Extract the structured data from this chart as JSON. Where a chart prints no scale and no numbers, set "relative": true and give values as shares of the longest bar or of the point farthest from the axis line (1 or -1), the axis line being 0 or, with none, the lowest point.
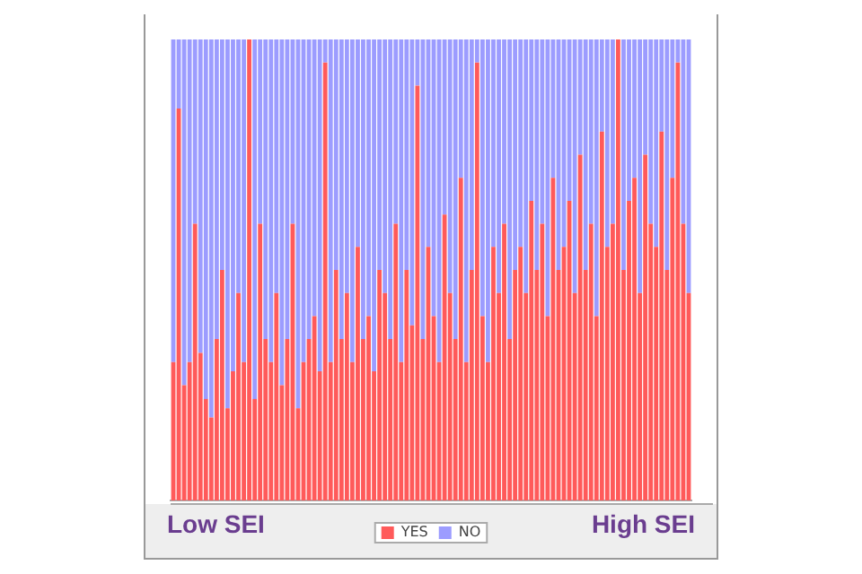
{
  "chart_data": {
    "type": "bar",
    "stacked": true,
    "relative": true,
    "legend": "bottom",
    "annotations": [
      "Low SEI",
      "High SEI"
    ],
    "categories": [
      null,
      null,
      null,
      null,
      null,
      null,
      null,
      null,
      null,
      null,
      null,
      null,
      null,
      null,
      null,
      null,
      null,
      null,
      null,
      null,
      null,
      null,
      null,
      null,
      null,
      null,
      null,
      null,
      null,
      null,
      null,
      null,
      null,
      null,
      null,
      null,
      null,
      null,
      null,
      null,
      null,
      null,
      null,
      null,
      null,
      null,
      null,
      null,
      null,
      null,
      null,
      null,
      null,
      null,
      null,
      null,
      null,
      null,
      null,
      null,
      null,
      null,
      null,
      null,
      null,
      null,
      null,
      null,
      null,
      null,
      null,
      null,
      null,
      null,
      null,
      null,
      null,
      null,
      null,
      null,
      null,
      null,
      null,
      null,
      null,
      null,
      null,
      null,
      null,
      null,
      null,
      null,
      null,
      null,
      null,
      null
    ],
    "series": [
      {
        "name": "YES",
        "color": "#ff5a5a",
        "values": [
          0.3,
          0.85,
          0.25,
          0.3,
          0.6,
          0.32,
          0.22,
          0.18,
          0.35,
          0.5,
          0.2,
          0.28,
          0.45,
          0.3,
          1.0,
          0.22,
          0.6,
          0.35,
          0.3,
          0.45,
          0.25,
          0.35,
          0.6,
          0.2,
          0.3,
          0.35,
          0.4,
          0.28,
          0.95,
          0.3,
          0.5,
          0.35,
          0.45,
          0.3,
          0.55,
          0.35,
          0.4,
          0.28,
          0.5,
          0.45,
          0.35,
          0.6,
          0.3,
          0.5,
          0.38,
          0.9,
          0.35,
          0.55,
          0.4,
          0.3,
          0.62,
          0.45,
          0.35,
          0.7,
          0.3,
          0.5,
          0.95,
          0.4,
          0.3,
          0.55,
          0.45,
          0.6,
          0.35,
          0.5,
          0.55,
          0.45,
          0.65,
          0.5,
          0.6,
          0.4,
          0.7,
          0.5,
          0.55,
          0.65,
          0.45,
          0.75,
          0.5,
          0.6,
          0.4,
          0.8,
          0.55,
          0.6,
          1.0,
          0.5,
          0.65,
          0.7,
          0.45,
          0.75,
          0.6,
          0.55,
          0.8,
          0.5,
          0.7,
          0.95,
          0.6,
          0.45
        ]
      },
      {
        "name": "NO",
        "color": "#9c9cff",
        "values": [
          0.7,
          0.15,
          0.75,
          0.7,
          0.4,
          0.68,
          0.78,
          0.82,
          0.65,
          0.5,
          0.8,
          0.72,
          0.55,
          0.7,
          0,
          0.78,
          0.4,
          0.65,
          0.7,
          0.55,
          0.75,
          0.65,
          0.4,
          0.8,
          0.7,
          0.65,
          0.6,
          0.72,
          0.05,
          0.7,
          0.5,
          0.65,
          0.55,
          0.7,
          0.45,
          0.65,
          0.6,
          0.72,
          0.5,
          0.55,
          0.65,
          0.4,
          0.7,
          0.5,
          0.62,
          0.1,
          0.65,
          0.45,
          0.6,
          0.7,
          0.38,
          0.55,
          0.65,
          0.3,
          0.7,
          0.5,
          0.05,
          0.6,
          0.7,
          0.45,
          0.55,
          0.4,
          0.65,
          0.5,
          0.45,
          0.55,
          0.35,
          0.5,
          0.4,
          0.6,
          0.3,
          0.5,
          0.45,
          0.35,
          0.55,
          0.25,
          0.5,
          0.4,
          0.6,
          0.2,
          0.45,
          0.4,
          0,
          0.5,
          0.35,
          0.3,
          0.55,
          0.25,
          0.4,
          0.45,
          0.2,
          0.5,
          0.3,
          0.05,
          0.4,
          0.55
        ]
      }
    ]
  }
}
